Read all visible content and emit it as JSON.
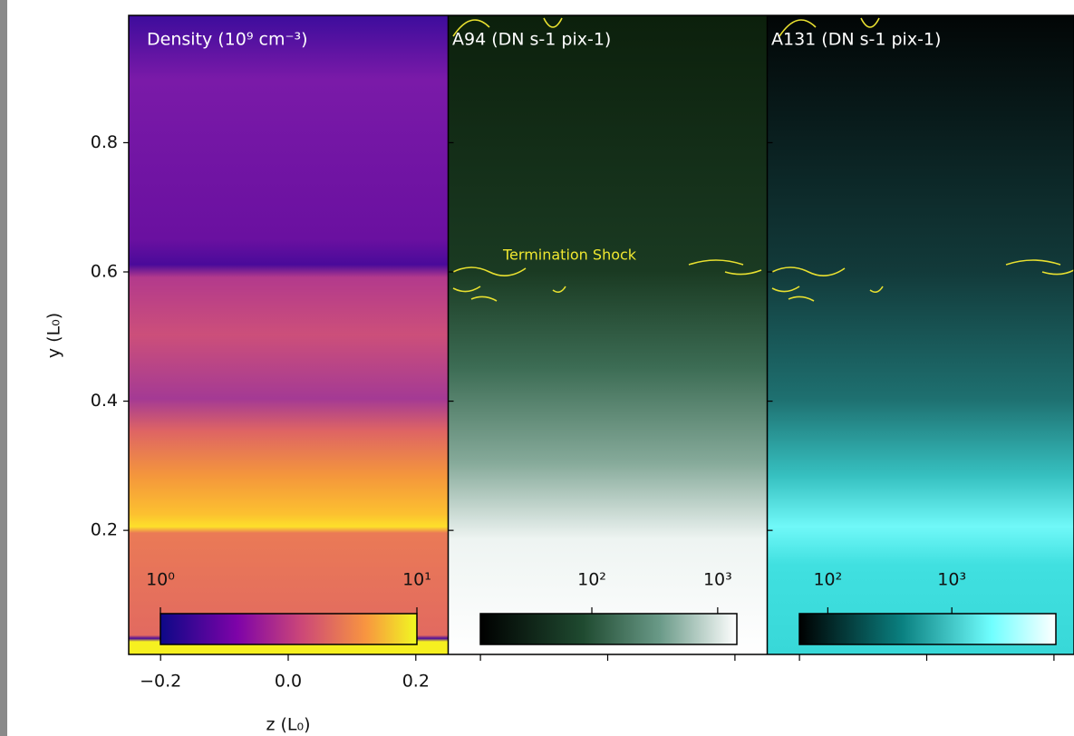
{
  "chart_data": {
    "type": "image",
    "ylabel": "y (L₀)",
    "xlabel": "z (L₀)",
    "xlim": [
      -0.25,
      0.25
    ],
    "xticks": [
      {
        "value": -0.2,
        "label": "−0.2"
      },
      {
        "value": 0.0,
        "label": "0.0"
      },
      {
        "value": 0.2,
        "label": "0.2"
      }
    ],
    "ylim": [
      0.008,
      0.997
    ],
    "yticks": [
      0.2,
      0.4,
      0.6,
      0.8
    ],
    "annotation": "Termination Shock",
    "panels": [
      {
        "title": "Density (10⁹ cm⁻³)",
        "colormap": "plasma",
        "clim": [
          1,
          10
        ],
        "log": true,
        "cticks": [
          {
            "value": 1,
            "label": "10⁰"
          },
          {
            "value": 10,
            "label": "10¹"
          }
        ]
      },
      {
        "title": "A94 (DN s-1 pix-1)",
        "colormap": "green",
        "clim": [
          13,
          1420
        ],
        "log": true,
        "cticks": [
          {
            "value": 100,
            "label": "10²"
          },
          {
            "value": 1000,
            "label": "10³"
          }
        ]
      },
      {
        "title": "A131 (DN s-1 pix-1)",
        "colormap": "cyan",
        "clim": [
          59,
          6900
        ],
        "log": true,
        "cticks": [
          {
            "value": 100,
            "label": "10²"
          },
          {
            "value": 1000,
            "label": "10³"
          }
        ]
      }
    ]
  }
}
